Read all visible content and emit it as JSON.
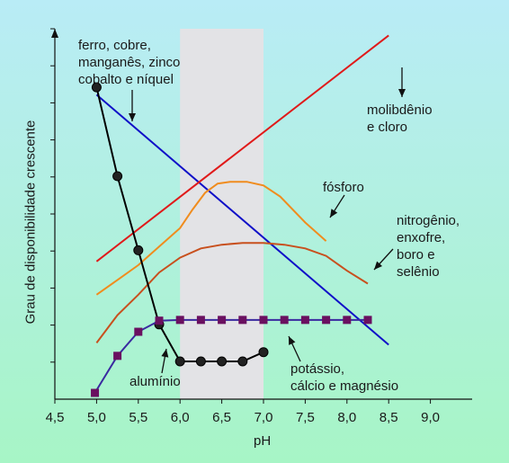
{
  "chart_data": {
    "type": "line",
    "xlabel": "pH",
    "ylabel": "Grau de disponibilidade crescente",
    "xlim": [
      4.5,
      9.0
    ],
    "xticks": [
      "4,5",
      "5,0",
      "5,5",
      "6,0",
      "6,5",
      "7,0",
      "7,5",
      "8,0",
      "8,5",
      "9,0"
    ],
    "y_tick_count": 10,
    "shaded_band": [
      6.0,
      7.0
    ],
    "series": [
      {
        "name": "ferro, cobre, manganês, zinco cobalto e níquel",
        "color": "#1010c8",
        "x": [
          5.0,
          8.5
        ],
        "y": [
          7.2,
          0.45
        ]
      },
      {
        "name": "molibdênio e cloro",
        "color": "#e01a1a",
        "x": [
          5.0,
          8.5
        ],
        "y": [
          2.7,
          8.8
        ]
      },
      {
        "name": "fósforo",
        "color": "#f08c1e",
        "x": [
          5.0,
          5.25,
          5.5,
          5.75,
          6.0,
          6.15,
          6.3,
          6.45,
          6.6,
          6.8,
          7.0,
          7.2,
          7.5,
          7.75
        ],
        "y": [
          1.8,
          2.2,
          2.6,
          3.1,
          3.6,
          4.1,
          4.55,
          4.8,
          4.85,
          4.85,
          4.75,
          4.45,
          3.75,
          3.25
        ]
      },
      {
        "name": "nitrogênio, enxofre, boro e selênio",
        "color": "#c8501e",
        "x": [
          5.0,
          5.25,
          5.5,
          5.75,
          6.0,
          6.25,
          6.5,
          6.75,
          7.0,
          7.25,
          7.5,
          7.75,
          8.0,
          8.25
        ],
        "y": [
          0.5,
          1.25,
          1.8,
          2.4,
          2.8,
          3.05,
          3.15,
          3.2,
          3.2,
          3.15,
          3.05,
          2.85,
          2.45,
          2.1
        ]
      },
      {
        "name": "alumínio",
        "color": "#000000",
        "marker": "circle",
        "x": [
          5.0,
          5.25,
          5.5,
          5.75,
          6.0,
          6.25,
          6.5,
          6.75,
          7.0
        ],
        "y": [
          7.4,
          5.0,
          3.0,
          1.0,
          0.0,
          0.0,
          0.0,
          0.0,
          0.25
        ]
      },
      {
        "name": "potássio, cálcio e magnésio",
        "color": "#3a2aa0",
        "marker": "square",
        "marker_color": "#6a1060",
        "x": [
          4.98,
          5.25,
          5.5,
          5.75,
          6.0,
          6.25,
          6.5,
          6.75,
          7.0,
          7.25,
          7.5,
          7.75,
          8.0,
          8.25
        ],
        "y": [
          -0.85,
          0.15,
          0.8,
          1.1,
          1.12,
          1.12,
          1.12,
          1.12,
          1.12,
          1.12,
          1.12,
          1.12,
          1.12,
          1.12
        ]
      }
    ]
  },
  "labels": {
    "iron": "ferro, cobre,\nmanganês, zinco\ncobalto e níquel",
    "molybdenum": "molibdênio\ne cloro",
    "phosphorus": "fósforo",
    "nitrogen": "nitrogênio,\nenxofre,\nboro e\nselênio",
    "aluminum": "alumínio",
    "potassium": "potássio,\ncálcio e magnésio"
  },
  "colors": {
    "background_top": "#b9ecf6",
    "background_bottom": "#a7f5c6",
    "band": "#e3e3e6"
  }
}
